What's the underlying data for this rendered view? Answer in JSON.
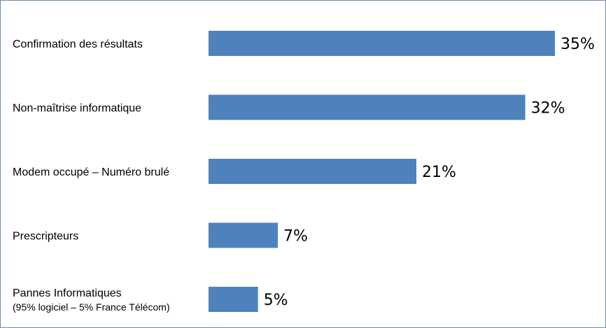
{
  "chart_data": {
    "type": "bar",
    "orientation": "horizontal",
    "categories": [
      "Confirmation des résultats",
      "Non-maîtrise informatique",
      "Modem occupé – Numéro brulé",
      "Prescripteurs",
      "Pannes Informatiques"
    ],
    "category_sublabels": [
      "",
      "",
      "",
      "",
      "(95% logiciel – 5% France Télécom)"
    ],
    "values": [
      35,
      32,
      21,
      7,
      5
    ],
    "value_labels": [
      "35%",
      "32%",
      "21%",
      "7%",
      "5%"
    ],
    "unit": "%",
    "title": "",
    "xlabel": "",
    "ylabel": "",
    "xlim": [
      0,
      35
    ],
    "grid": false,
    "legend": "none",
    "bar_color": "#4f81bd",
    "border_color": "#6d8bb5"
  }
}
